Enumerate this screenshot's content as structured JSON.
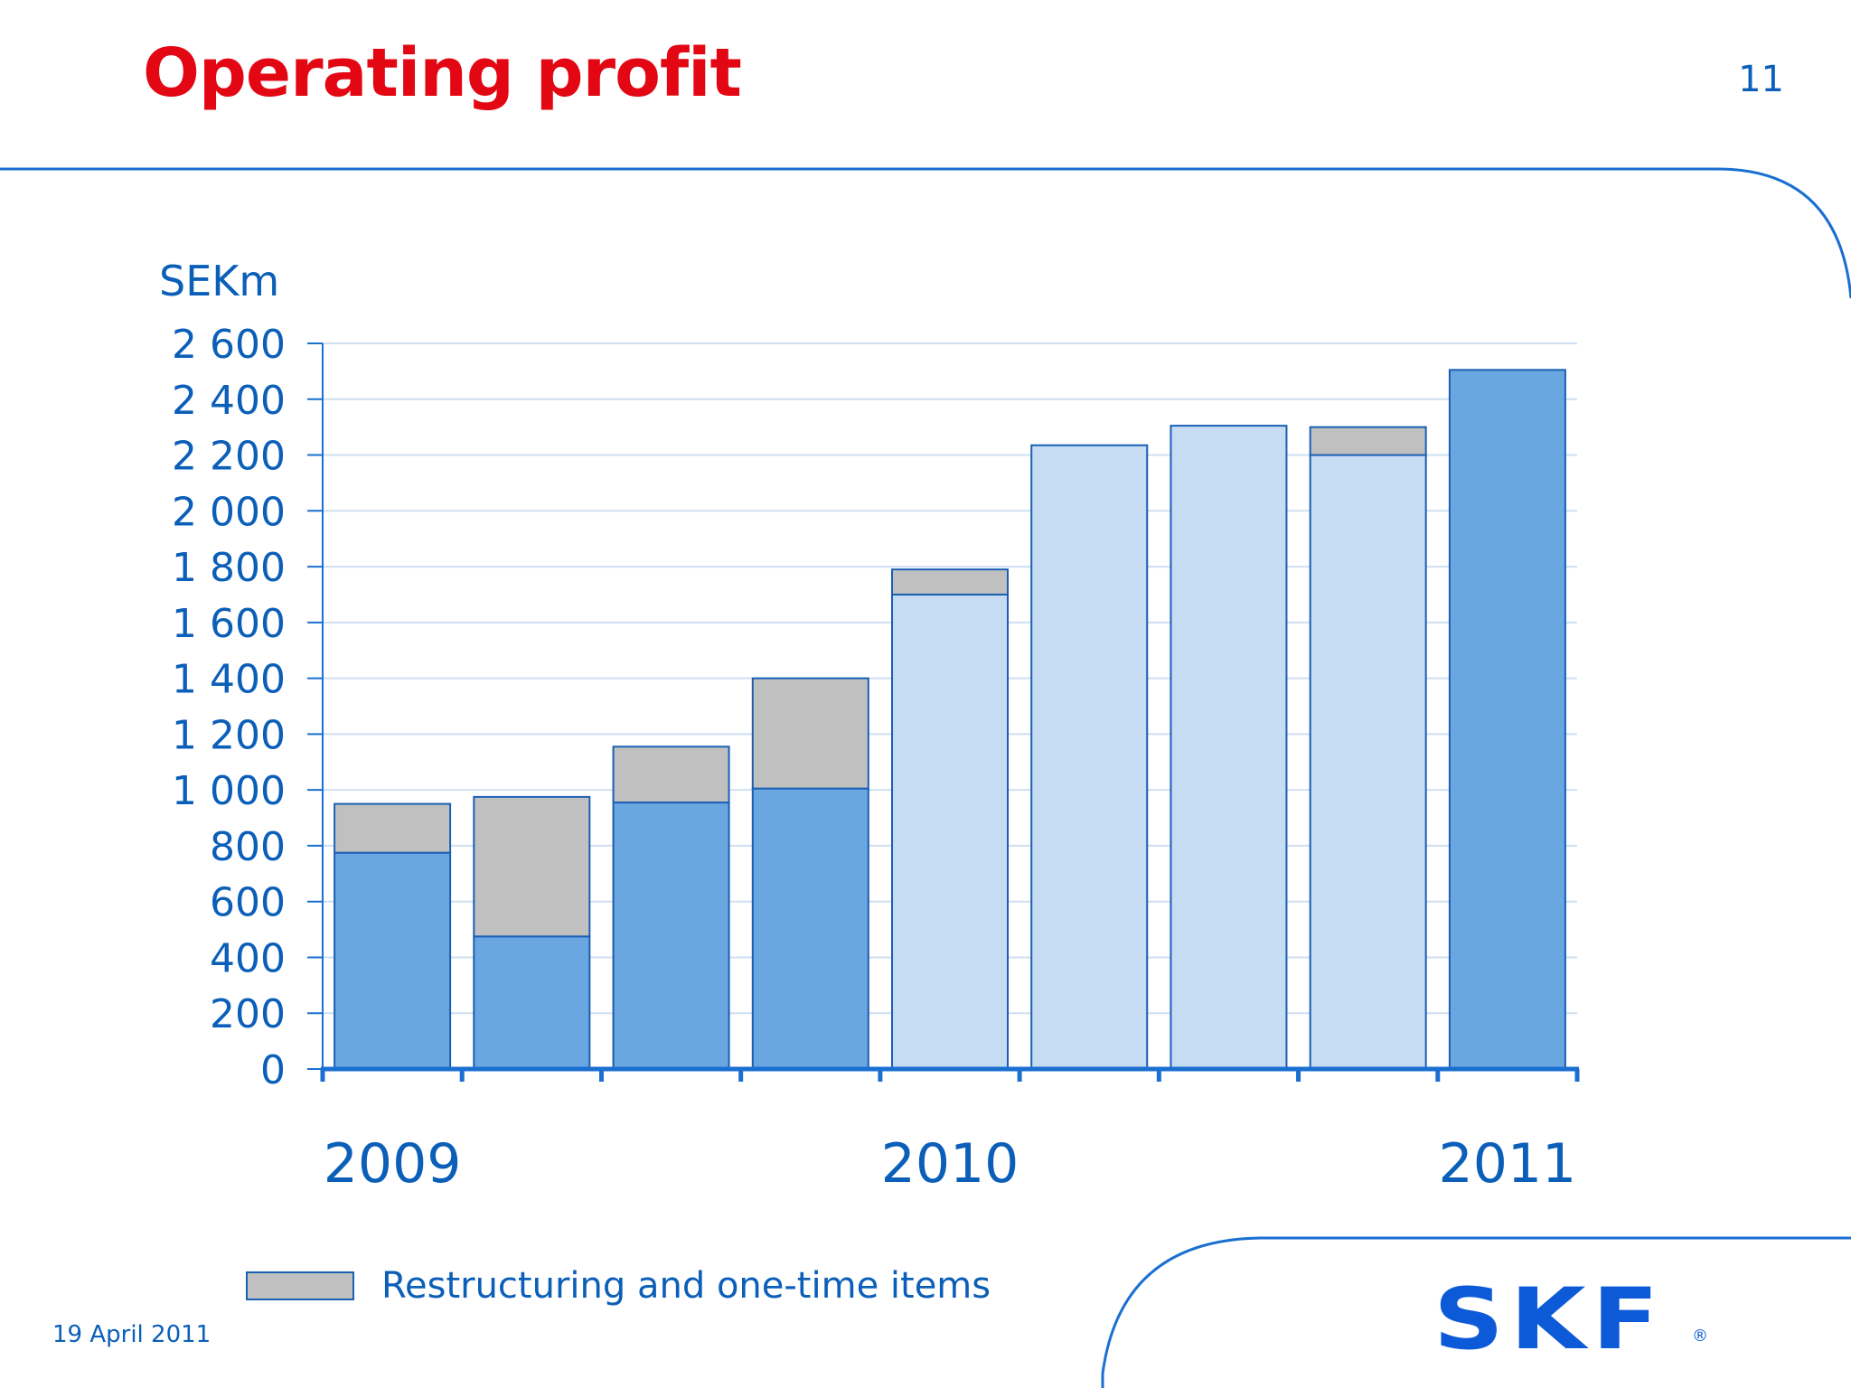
{
  "slide": {
    "title": "Operating profit",
    "page_number": "11",
    "date": "19 April 2011",
    "logo_text": "SKF",
    "logo_reg": "®"
  },
  "colors": {
    "title": "#e30613",
    "text": "#0b5fb8",
    "frame": "#1a6fd0",
    "bar_dark": "#6aa6e0",
    "bar_light": "#c6dcf3",
    "restructuring": "#c0c0c0",
    "bar_outline": "#1a5fb4"
  },
  "legend": {
    "restructuring_label": "Restructuring and one-time items"
  },
  "chart_data": {
    "type": "bar",
    "stacked": true,
    "ylabel": "SEKm",
    "ylim": [
      0,
      2600
    ],
    "yticks": [
      0,
      200,
      400,
      600,
      800,
      1000,
      1200,
      1400,
      1600,
      1800,
      2000,
      2200,
      2400,
      2600
    ],
    "ytick_labels": [
      "0",
      "200",
      "400",
      "600",
      "800",
      "1 000",
      "1 200",
      "1 400",
      "1 600",
      "1 800",
      "2 000",
      "2 200",
      "2 400",
      "2 600"
    ],
    "year_labels": [
      {
        "label": "2009",
        "bar_index": 0.5
      },
      {
        "label": "2010",
        "bar_index": 4.5
      },
      {
        "label": "2011",
        "bar_index": 8.5
      }
    ],
    "grid": true,
    "legend_position": "bottom-left",
    "bars": [
      {
        "base": 775,
        "restructuring": 175,
        "shade": "dark"
      },
      {
        "base": 475,
        "restructuring": 500,
        "shade": "dark"
      },
      {
        "base": 955,
        "restructuring": 200,
        "shade": "dark"
      },
      {
        "base": 1005,
        "restructuring": 395,
        "shade": "dark"
      },
      {
        "base": 1700,
        "restructuring": 90,
        "shade": "light"
      },
      {
        "base": 2235,
        "restructuring": 0,
        "shade": "light"
      },
      {
        "base": 2305,
        "restructuring": 0,
        "shade": "light"
      },
      {
        "base": 2200,
        "restructuring": 100,
        "shade": "light"
      },
      {
        "base": 2505,
        "restructuring": 0,
        "shade": "dark"
      }
    ],
    "series": [
      {
        "name": "",
        "values": [
          775,
          475,
          955,
          1005,
          1700,
          2235,
          2305,
          2200,
          2505
        ]
      },
      {
        "name": "Restructuring and one-time items",
        "values": [
          175,
          500,
          200,
          395,
          90,
          0,
          0,
          100,
          0
        ]
      }
    ]
  }
}
